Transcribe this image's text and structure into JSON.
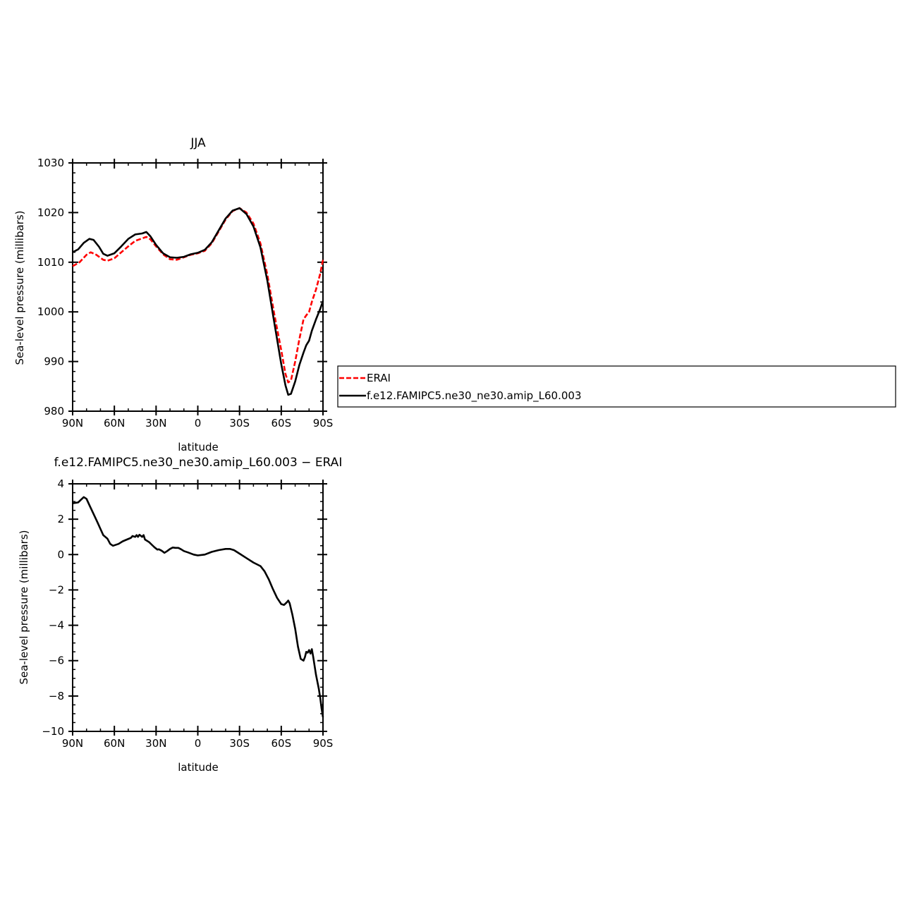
{
  "chart_data": [
    {
      "type": "line",
      "title": "JJA",
      "xlabel": "latitude",
      "ylabel": "Sea-level pressure (millibars)",
      "xlim": [
        90,
        -90
      ],
      "ylim": [
        980,
        1030
      ],
      "x_ticks": [
        90,
        60,
        30,
        0,
        -30,
        -60,
        -90
      ],
      "x_tick_labels": [
        "90N",
        "60N",
        "30N",
        "0",
        "30S",
        "60S",
        "90S"
      ],
      "y_ticks": [
        980,
        990,
        1000,
        1010,
        1020,
        1030
      ],
      "y_tick_labels": [
        "980",
        "990",
        "1000",
        "1010",
        "1020",
        "1030"
      ],
      "legend_position": "right",
      "series": [
        {
          "name": "ERAI",
          "color": "#ff0000",
          "dash": true,
          "points": [
            [
              90,
              1009.2
            ],
            [
              85,
              1010
            ],
            [
              80,
              1011.5
            ],
            [
              77,
              1012
            ],
            [
              73,
              1011.5
            ],
            [
              68,
              1010.5
            ],
            [
              65,
              1010.3
            ],
            [
              60,
              1010.8
            ],
            [
              55,
              1012
            ],
            [
              50,
              1013.2
            ],
            [
              45,
              1014.3
            ],
            [
              40,
              1014.8
            ],
            [
              37,
              1015.1
            ],
            [
              34,
              1014.6
            ],
            [
              30,
              1013.2
            ],
            [
              25,
              1011.6
            ],
            [
              20,
              1010.6
            ],
            [
              15,
              1010.5
            ],
            [
              10,
              1011
            ],
            [
              5,
              1011.5
            ],
            [
              0,
              1011.8
            ],
            [
              -5,
              1012.3
            ],
            [
              -10,
              1013.8
            ],
            [
              -15,
              1016.2
            ],
            [
              -20,
              1018.6
            ],
            [
              -25,
              1020.3
            ],
            [
              -30,
              1020.9
            ],
            [
              -35,
              1020
            ],
            [
              -40,
              1017.8
            ],
            [
              -45,
              1013.8
            ],
            [
              -50,
              1007.5
            ],
            [
              -55,
              999.5
            ],
            [
              -60,
              992.3
            ],
            [
              -63,
              987.5
            ],
            [
              -65,
              985.8
            ],
            [
              -67,
              986.2
            ],
            [
              -70,
              990
            ],
            [
              -73,
              994.5
            ],
            [
              -76,
              998.5
            ],
            [
              -78,
              999.3
            ],
            [
              -80,
              1000
            ],
            [
              -82,
              1002
            ],
            [
              -85,
              1004.5
            ],
            [
              -88,
              1007.7
            ],
            [
              -90,
              1010.5
            ]
          ]
        },
        {
          "name": "f.e12.FAMIPC5.ne30_ne30.amip_L60.003",
          "color": "#000000",
          "dash": false,
          "points": [
            [
              90,
              1012
            ],
            [
              86,
              1012.6
            ],
            [
              82,
              1013.9
            ],
            [
              78,
              1014.7
            ],
            [
              75,
              1014.5
            ],
            [
              71,
              1013.1
            ],
            [
              68,
              1011.7
            ],
            [
              65,
              1011.3
            ],
            [
              60,
              1011.8
            ],
            [
              55,
              1013.2
            ],
            [
              50,
              1014.7
            ],
            [
              45,
              1015.6
            ],
            [
              40,
              1015.8
            ],
            [
              37,
              1016.1
            ],
            [
              34,
              1015.2
            ],
            [
              30,
              1013.5
            ],
            [
              25,
              1011.8
            ],
            [
              20,
              1011
            ],
            [
              15,
              1010.9
            ],
            [
              10,
              1011.1
            ],
            [
              5,
              1011.6
            ],
            [
              0,
              1011.9
            ],
            [
              -5,
              1012.5
            ],
            [
              -10,
              1014
            ],
            [
              -15,
              1016.4
            ],
            [
              -20,
              1018.8
            ],
            [
              -25,
              1020.4
            ],
            [
              -30,
              1020.9
            ],
            [
              -35,
              1019.7
            ],
            [
              -40,
              1017.2
            ],
            [
              -45,
              1013
            ],
            [
              -50,
              1006.3
            ],
            [
              -55,
              997.8
            ],
            [
              -60,
              989.5
            ],
            [
              -63,
              985.2
            ],
            [
              -65,
              983.3
            ],
            [
              -67,
              983.5
            ],
            [
              -70,
              986
            ],
            [
              -73,
              989.3
            ],
            [
              -76,
              991.8
            ],
            [
              -78,
              993.3
            ],
            [
              -80,
              994.2
            ],
            [
              -82,
              996.2
            ],
            [
              -85,
              998.5
            ],
            [
              -88,
              1000.6
            ],
            [
              -90,
              1002.2
            ]
          ]
        }
      ]
    },
    {
      "type": "line",
      "title": "f.e12.FAMIPC5.ne30_ne30.amip_L60.003 − ERAI",
      "xlabel": "latitude",
      "ylabel": "Sea-level pressure (millibars)",
      "xlim": [
        90,
        -90
      ],
      "ylim": [
        -10,
        4
      ],
      "x_ticks": [
        90,
        60,
        30,
        0,
        -30,
        -60,
        -90
      ],
      "x_tick_labels": [
        "90N",
        "60N",
        "30N",
        "0",
        "30S",
        "60S",
        "90S"
      ],
      "y_ticks": [
        4,
        2,
        0,
        -2,
        -4,
        -6,
        -8,
        -10
      ],
      "y_tick_labels": [
        "4",
        "2",
        "0",
        "−2",
        "−4",
        "−6",
        "−8",
        "−10"
      ],
      "series": [
        {
          "color": "#000000",
          "dash": false,
          "points": [
            [
              90,
              2.9
            ],
            [
              86,
              2.95
            ],
            [
              84,
              3.1
            ],
            [
              82,
              3.25
            ],
            [
              80,
              3.15
            ],
            [
              78,
              2.8
            ],
            [
              75,
              2.3
            ],
            [
              72,
              1.8
            ],
            [
              70,
              1.45
            ],
            [
              68,
              1.1
            ],
            [
              65,
              0.9
            ],
            [
              63,
              0.6
            ],
            [
              61,
              0.5
            ],
            [
              57,
              0.6
            ],
            [
              54,
              0.75
            ],
            [
              51,
              0.85
            ],
            [
              48,
              0.95
            ],
            [
              47,
              1.05
            ],
            [
              45,
              1.0
            ],
            [
              44,
              1.1
            ],
            [
              43,
              1.0
            ],
            [
              42,
              1.12
            ],
            [
              40,
              1.0
            ],
            [
              39,
              1.1
            ],
            [
              38,
              0.85
            ],
            [
              35,
              0.7
            ],
            [
              33,
              0.55
            ],
            [
              31,
              0.4
            ],
            [
              29,
              0.28
            ],
            [
              28,
              0.3
            ],
            [
              26,
              0.22
            ],
            [
              24,
              0.1
            ],
            [
              22,
              0.2
            ],
            [
              20,
              0.32
            ],
            [
              18,
              0.4
            ],
            [
              16,
              0.38
            ],
            [
              14,
              0.38
            ],
            [
              12,
              0.3
            ],
            [
              10,
              0.2
            ],
            [
              7,
              0.12
            ],
            [
              3,
              0.0
            ],
            [
              0,
              -0.05
            ],
            [
              -5,
              0.0
            ],
            [
              -10,
              0.15
            ],
            [
              -15,
              0.25
            ],
            [
              -20,
              0.32
            ],
            [
              -23,
              0.32
            ],
            [
              -26,
              0.25
            ],
            [
              -30,
              0.05
            ],
            [
              -35,
              -0.2
            ],
            [
              -40,
              -0.45
            ],
            [
              -45,
              -0.65
            ],
            [
              -48,
              -0.95
            ],
            [
              -51,
              -1.4
            ],
            [
              -54,
              -1.95
            ],
            [
              -57,
              -2.45
            ],
            [
              -60,
              -2.8
            ],
            [
              -62,
              -2.85
            ],
            [
              -64,
              -2.7
            ],
            [
              -65,
              -2.6
            ],
            [
              -66,
              -2.75
            ],
            [
              -68,
              -3.4
            ],
            [
              -70,
              -4.2
            ],
            [
              -72,
              -5.2
            ],
            [
              -74,
              -5.9
            ],
            [
              -76,
              -6.0
            ],
            [
              -77,
              -5.8
            ],
            [
              -78,
              -5.5
            ],
            [
              -79,
              -5.55
            ],
            [
              -80,
              -5.4
            ],
            [
              -81,
              -5.6
            ],
            [
              -82,
              -5.35
            ],
            [
              -83,
              -5.8
            ],
            [
              -85,
              -6.8
            ],
            [
              -87,
              -7.6
            ],
            [
              -88,
              -8.1
            ],
            [
              -89,
              -8.7
            ],
            [
              -90,
              -9.2
            ]
          ]
        }
      ]
    }
  ]
}
